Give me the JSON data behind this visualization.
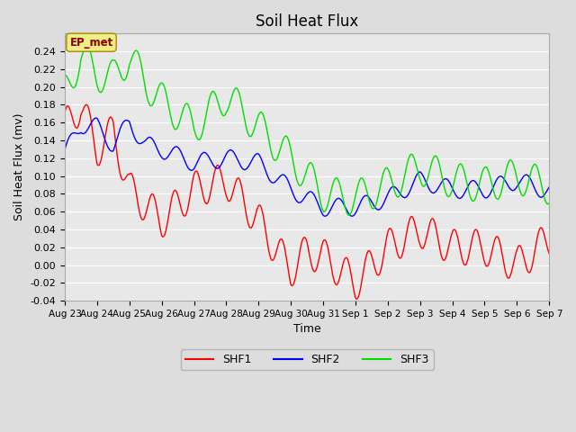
{
  "title": "Soil Heat Flux",
  "xlabel": "Time",
  "ylabel": "Soil Heat Flux (mv)",
  "ylim": [
    -0.04,
    0.26
  ],
  "yticks": [
    -0.04,
    -0.02,
    0.0,
    0.02,
    0.04,
    0.06,
    0.08,
    0.1,
    0.12,
    0.14,
    0.16,
    0.18,
    0.2,
    0.22,
    0.24
  ],
  "xtick_labels": [
    "Aug 23",
    "Aug 24",
    "Aug 25",
    "Aug 26",
    "Aug 27",
    "Aug 28",
    "Aug 29",
    "Aug 30",
    "Aug 31",
    "Sep 1",
    "Sep 2",
    "Sep 3",
    "Sep 4",
    "Sep 5",
    "Sep 6",
    "Sep 7"
  ],
  "legend_labels": [
    "SHF1",
    "SHF2",
    "SHF3"
  ],
  "shf1_color": "#ff0000",
  "shf2_color": "#0000ff",
  "shf3_color": "#00dd00",
  "annotation_text": "EP_met",
  "annotation_facecolor": "#eeee88",
  "annotation_edgecolor": "#aa8800",
  "annotation_textcolor": "#880000",
  "bg_color": "#dddddd",
  "plot_bg_color": "#e8e8e8",
  "grid_color": "#ffffff",
  "title_fontsize": 12,
  "axis_label_fontsize": 9,
  "tick_fontsize": 8
}
